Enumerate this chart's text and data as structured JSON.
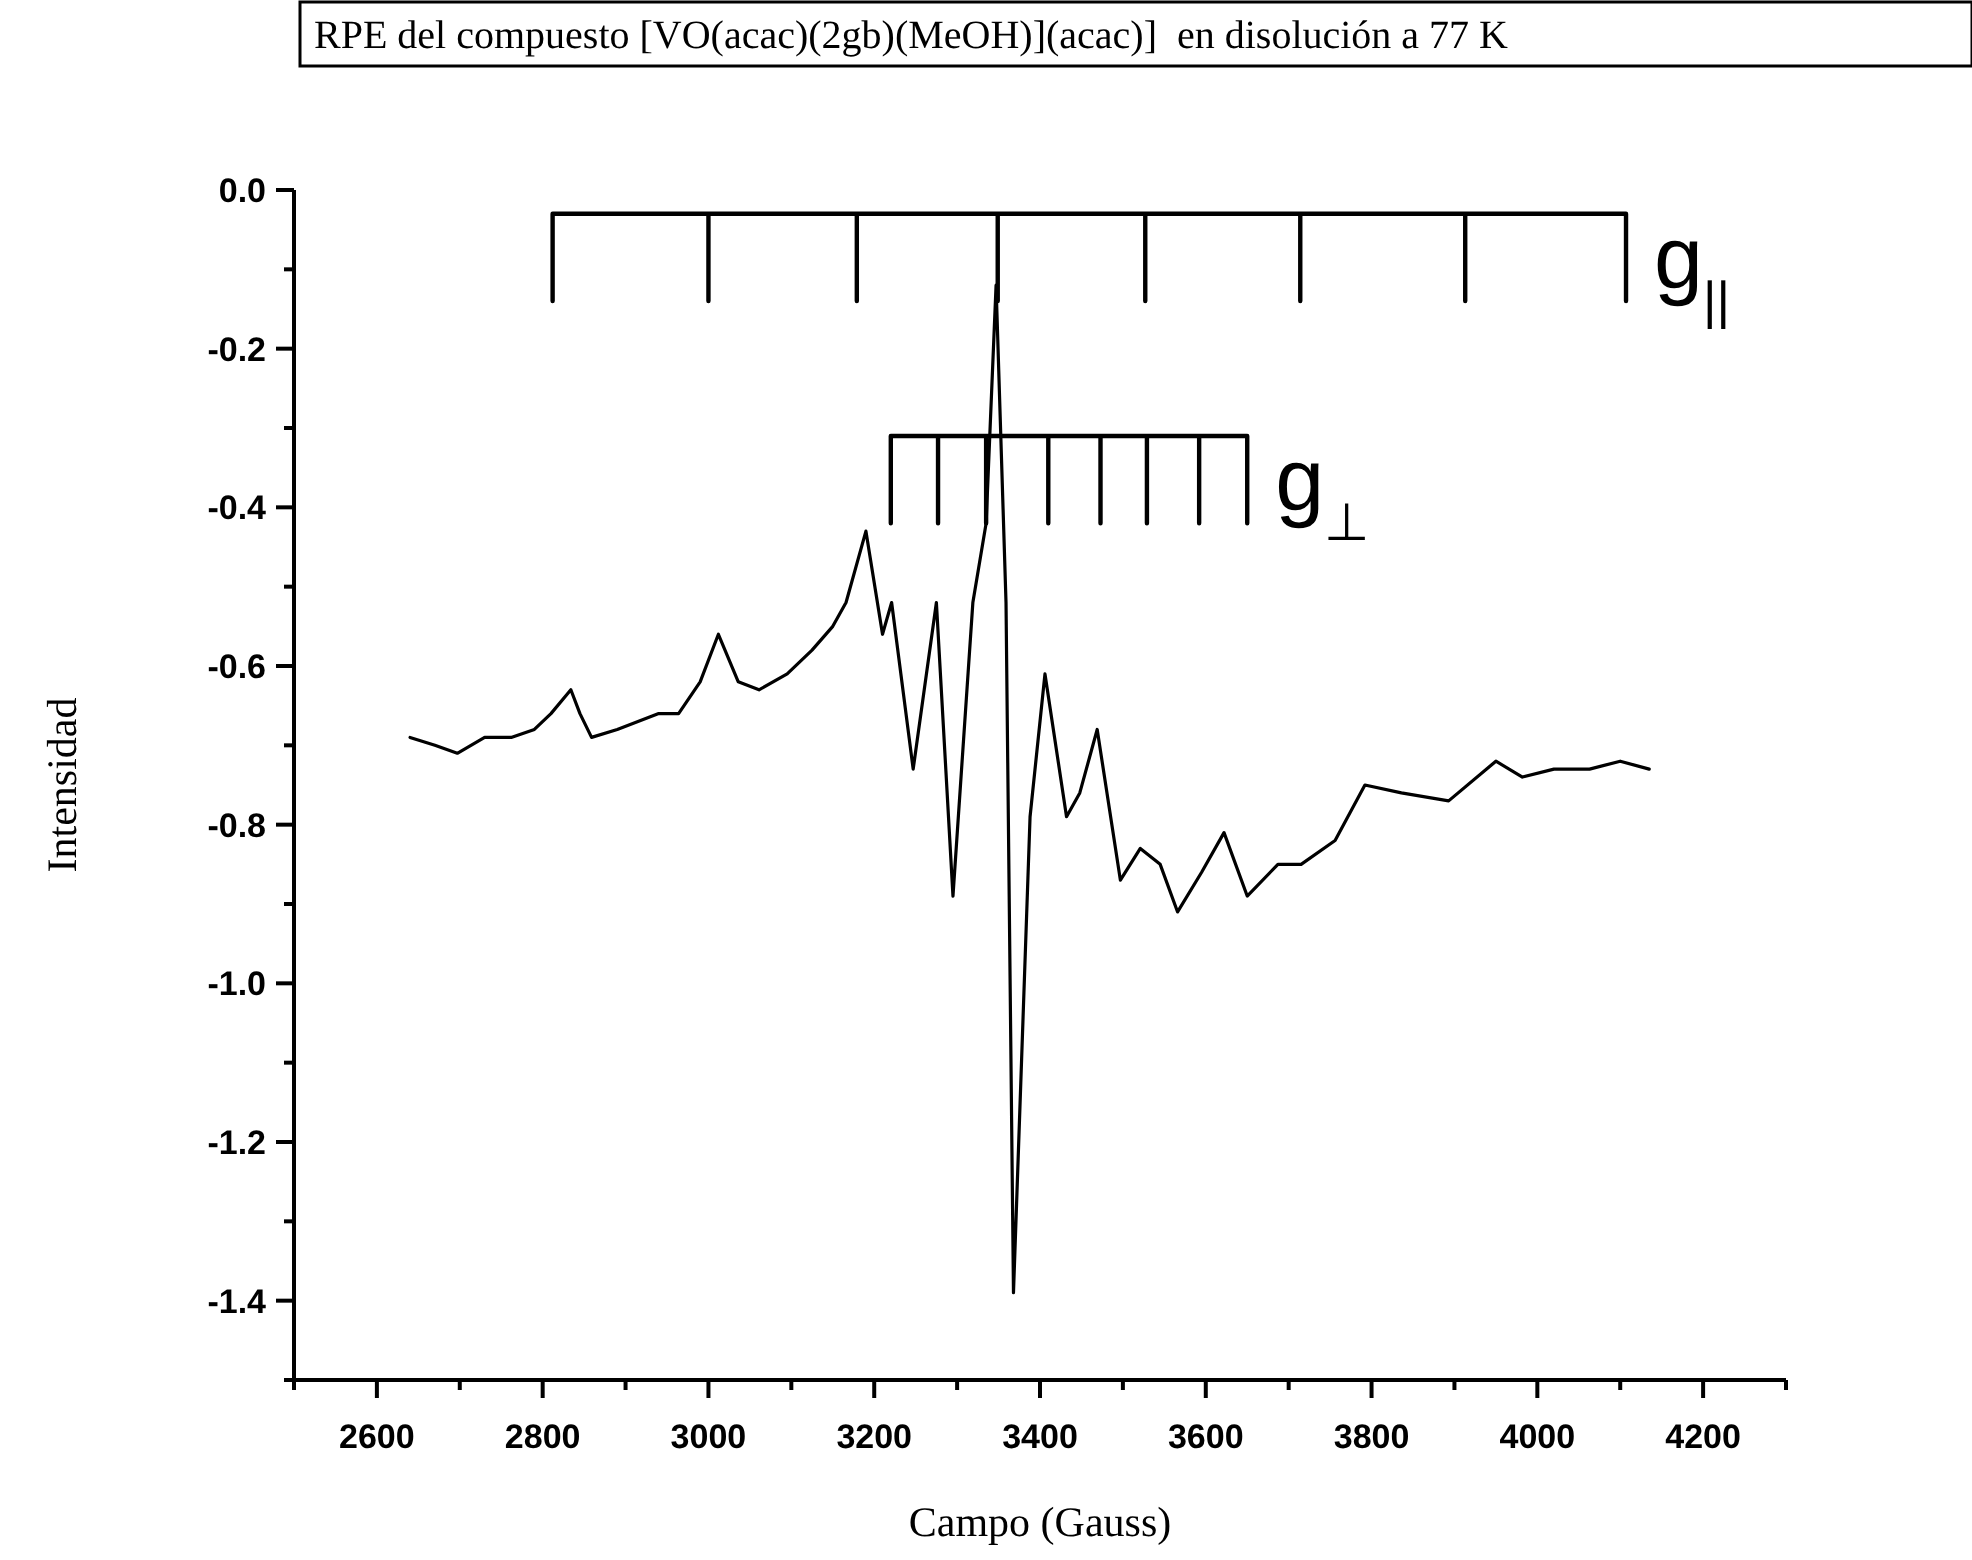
{
  "chart_data": {
    "type": "line",
    "title": "RPE del compuesto [VO(acac)(2gb)(MeOH)](acac)]  en disolución a 77 K",
    "xlabel": "Campo (Gauss)",
    "ylabel": "Intensidad",
    "xlim": [
      2500,
      4300
    ],
    "ylim": [
      -1.5,
      0
    ],
    "xticks": [
      {
        "value": 2500,
        "label": null
      },
      2600,
      {
        "value": 2700,
        "label": null
      },
      2800,
      {
        "value": 2900,
        "label": null
      },
      3000,
      {
        "value": 3100,
        "label": null
      },
      3200,
      {
        "value": 3300,
        "label": null
      },
      3400,
      {
        "value": 3500,
        "label": null
      },
      3600,
      {
        "value": 3700,
        "label": null
      },
      3800,
      {
        "value": 3900,
        "label": null
      },
      4000,
      {
        "value": 4100,
        "label": null
      },
      4200,
      {
        "value": 4300,
        "label": null
      }
    ],
    "yticks": [
      {
        "value": -1.5,
        "label": null
      },
      {
        "value": -1.4,
        "label": "-1.4"
      },
      {
        "value": -1.3,
        "label": null
      },
      {
        "value": -1.2,
        "label": "-1.2"
      },
      {
        "value": -1.1,
        "label": null
      },
      {
        "value": -1.0,
        "label": "-1.0"
      },
      {
        "value": -0.9,
        "label": null
      },
      {
        "value": -0.8,
        "label": "-0.8"
      },
      {
        "value": -0.7,
        "label": null
      },
      {
        "value": -0.6,
        "label": "-0.6"
      },
      {
        "value": -0.5,
        "label": null
      },
      {
        "value": -0.4,
        "label": "-0.4"
      },
      {
        "value": -0.3,
        "label": null
      },
      {
        "value": -0.2,
        "label": "-0.2"
      },
      {
        "value": -0.1,
        "label": null
      },
      {
        "value": 0,
        "label": "0.0"
      }
    ],
    "grid": false,
    "marker": "none",
    "line_style": "solid",
    "series": [
      {
        "color": "#000000",
        "x": [
          2640,
          2670,
          2697,
          2730,
          2762,
          2790,
          2810,
          2834,
          2845,
          2859,
          2890,
          2915,
          2940,
          2964,
          2990,
          3012,
          3036,
          3061,
          3095,
          3125,
          3150,
          3166,
          3190,
          3210,
          3221,
          3247,
          3275,
          3295,
          3319,
          3335,
          3347,
          3359,
          3368,
          3388,
          3406,
          3432,
          3448,
          3469,
          3497,
          3521,
          3545,
          3566,
          3595,
          3622,
          3650,
          3687,
          3715,
          3756,
          3792,
          3836,
          3893,
          3950,
          3982,
          4020,
          4063,
          4100,
          4135
        ],
        "values": [
          -0.69,
          -0.7,
          -0.71,
          -0.69,
          -0.69,
          -0.68,
          -0.66,
          -0.63,
          -0.66,
          -0.69,
          -0.68,
          -0.67,
          -0.66,
          -0.66,
          -0.62,
          -0.56,
          -0.62,
          -0.63,
          -0.61,
          -0.58,
          -0.55,
          -0.52,
          -0.43,
          -0.56,
          -0.52,
          -0.73,
          -0.52,
          -0.89,
          -0.52,
          -0.42,
          -0.12,
          -0.52,
          -1.39,
          -0.79,
          -0.61,
          -0.79,
          -0.76,
          -0.68,
          -0.87,
          -0.83,
          -0.85,
          -0.91,
          -0.86,
          -0.81,
          -0.89,
          -0.85,
          -0.85,
          -0.82,
          -0.75,
          -0.76,
          -0.77,
          -0.72,
          -0.74,
          -0.73,
          -0.73,
          -0.72,
          -0.73
        ]
      },
      {
        "color": "#000000",
        "x": [
          2812,
          2812,
          3000,
          3000,
          3000,
          3179,
          3179,
          3179,
          3349,
          3349,
          3349,
          3527,
          3527,
          3527,
          3714,
          3714,
          3714,
          3913,
          3913,
          3913,
          4107,
          4107
        ],
        "values": [
          -0.14,
          -0.03,
          -0.03,
          -0.14,
          -0.03,
          -0.03,
          -0.14,
          -0.03,
          -0.03,
          -0.14,
          -0.03,
          -0.03,
          -0.14,
          -0.03,
          -0.03,
          -0.14,
          -0.03,
          -0.03,
          -0.14,
          -0.03,
          -0.03,
          -0.14
        ]
      },
      {
        "color": "#000000",
        "x": [
          3220,
          3220,
          3277,
          3277,
          3277,
          3335,
          3335,
          3335,
          3410,
          3410,
          3410,
          3473,
          3473,
          3473,
          3529,
          3529,
          3529,
          3592,
          3592,
          3592,
          3650,
          3650
        ],
        "values": [
          -0.42,
          -0.31,
          -0.31,
          -0.42,
          -0.31,
          -0.31,
          -0.42,
          -0.31,
          -0.31,
          -0.42,
          -0.31,
          -0.31,
          -0.42,
          -0.31,
          -0.31,
          -0.42,
          -0.31,
          -0.31,
          -0.42,
          -0.31,
          -0.31,
          -0.42
        ]
      }
    ],
    "annotations": [
      "g$_{||}$",
      "g$_{⊥}$"
    ]
  }
}
